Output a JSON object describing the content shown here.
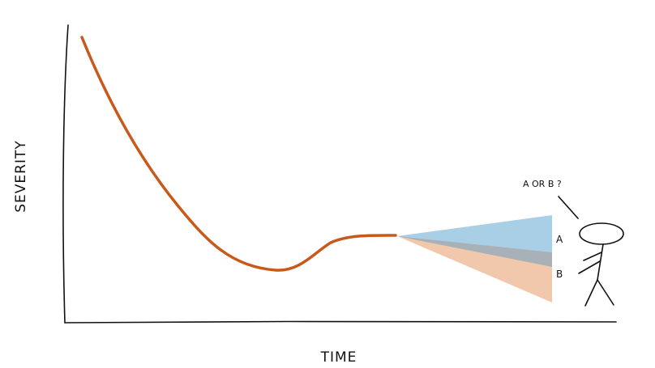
{
  "axes": {
    "y_label": "SEVERITY",
    "x_label": "TIME"
  },
  "figure": {
    "speech": "A OR B ?"
  },
  "branches": {
    "a_label": "A",
    "b_label": "B"
  },
  "colors": {
    "curve": "#c8591b",
    "branch_a": "#a9cfe6",
    "branch_overlap": "#a7b1b7",
    "branch_b": "#f1c8ac",
    "ink": "#111111"
  }
}
